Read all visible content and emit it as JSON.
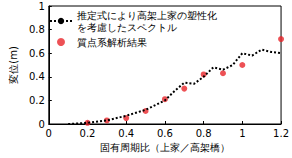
{
  "chart_data": {
    "type": "line",
    "xlabel": "固有周期比（上家／高架橋）",
    "ylabel": "変位(m)",
    "xlim": [
      0,
      1.2
    ],
    "xticks": [
      0,
      0.2,
      0.4,
      0.6,
      0.8,
      1,
      1.2
    ],
    "ylim": [
      0,
      1
    ],
    "yticks": [
      0,
      0.2,
      0.4,
      0.6,
      0.8,
      1
    ],
    "grid": false,
    "legend": "upper left",
    "series": [
      {
        "name": "推定式により高架上家の塑性化を考慮したスペクトル",
        "type": "line",
        "line_style": "dotted",
        "color": "#000000",
        "x": [
          0.1,
          0.2,
          0.3,
          0.4,
          0.5,
          0.6,
          0.65,
          0.7,
          0.75,
          0.8,
          0.85,
          0.9,
          0.95,
          1.0,
          1.05,
          1.1,
          1.15,
          1.2
        ],
        "values": [
          0,
          0.01,
          0.03,
          0.07,
          0.12,
          0.2,
          0.28,
          0.35,
          0.34,
          0.4,
          0.48,
          0.46,
          0.5,
          0.6,
          0.58,
          0.63,
          0.61,
          0.6
        ]
      },
      {
        "name": "質点系解析結果",
        "type": "scatter",
        "marker": "circle",
        "color": "#e8262a",
        "x": [
          0.2,
          0.3,
          0.4,
          0.5,
          0.6,
          0.7,
          0.8,
          0.9,
          1.0,
          1.2
        ],
        "values": [
          0.01,
          0.03,
          0.05,
          0.11,
          0.21,
          0.3,
          0.42,
          0.43,
          0.5,
          0.72
        ]
      }
    ]
  }
}
